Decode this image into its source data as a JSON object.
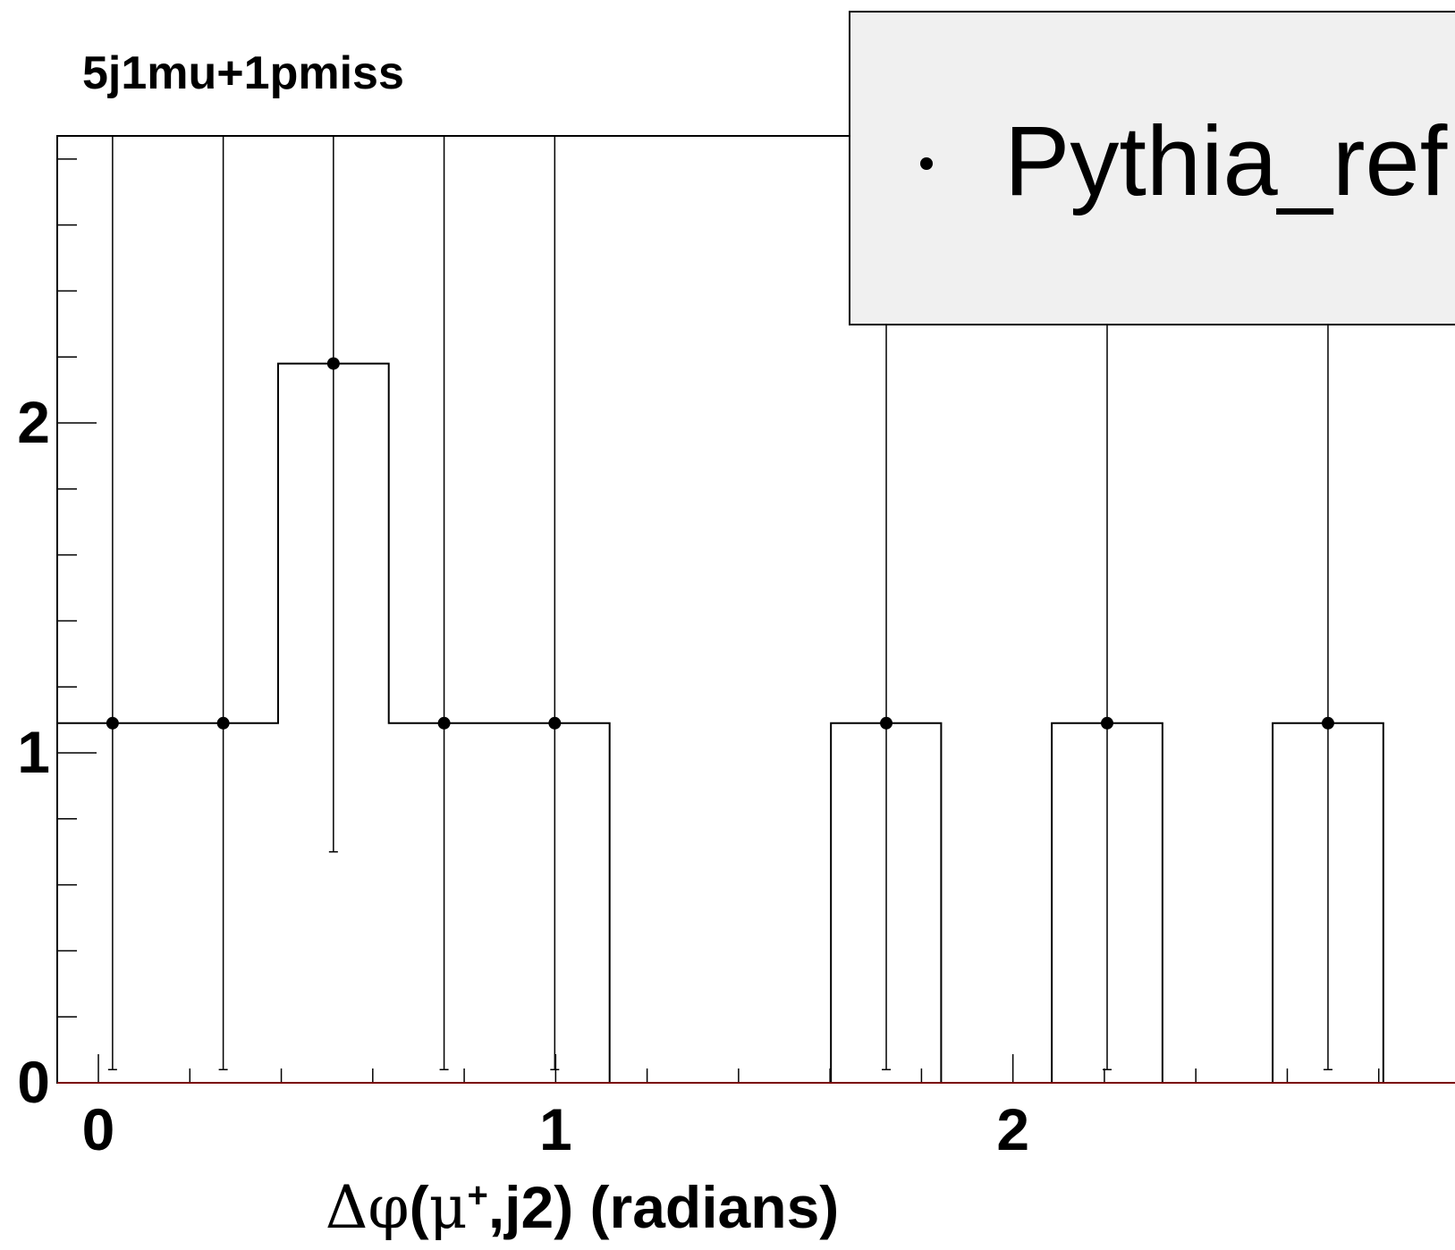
{
  "chart_data": {
    "type": "histogram",
    "title": "5j1mu+1pmiss",
    "xlabel": "Δφ(μ⁺,j2) (radians)",
    "xlabel_parts": {
      "delta_phi": "Δφ",
      "open": "(",
      "mu": "μ",
      "sup": "+",
      "rest": ",j2) (radians)"
    },
    "xlim": [
      -0.09,
      3.0
    ],
    "ylim": [
      0,
      2.87
    ],
    "x_ticks": [
      "0",
      "1",
      "2"
    ],
    "x_tick_values": [
      0,
      1,
      2
    ],
    "y_ticks": [
      "0",
      "1",
      "2"
    ],
    "y_tick_values": [
      0,
      1,
      2
    ],
    "bin_width": 0.2417,
    "grid": false,
    "legend_position": "top-right",
    "series": [
      {
        "name": "Pythia_ref",
        "bins": [
          {
            "low": -0.09,
            "high": 0.152,
            "center": 0.031,
            "value": 1.09,
            "err_low": 1.05,
            "err_high": 2.16
          },
          {
            "low": 0.152,
            "high": 0.393,
            "center": 0.273,
            "value": 1.09,
            "err_low": 1.05,
            "err_high": 2.16
          },
          {
            "low": 0.393,
            "high": 0.635,
            "center": 0.514,
            "value": 2.18,
            "err_low": 1.48,
            "err_high": 2.87
          },
          {
            "low": 0.635,
            "high": 0.877,
            "center": 0.756,
            "value": 1.09,
            "err_low": 1.05,
            "err_high": 2.16
          },
          {
            "low": 0.877,
            "high": 1.118,
            "center": 0.998,
            "value": 1.09,
            "err_low": 1.05,
            "err_high": 2.16
          },
          {
            "low": 1.118,
            "high": 1.36,
            "center": 1.239,
            "value": 0,
            "err_low": 0,
            "err_high": 0
          },
          {
            "low": 1.36,
            "high": 1.602,
            "center": 1.481,
            "value": 0,
            "err_low": 0,
            "err_high": 0
          },
          {
            "low": 1.602,
            "high": 1.843,
            "center": 1.723,
            "value": 1.09,
            "err_low": 1.05,
            "err_high": 2.16
          },
          {
            "low": 1.843,
            "high": 2.085,
            "center": 1.964,
            "value": 0,
            "err_low": 0,
            "err_high": 0
          },
          {
            "low": 2.085,
            "high": 2.327,
            "center": 2.206,
            "value": 1.09,
            "err_low": 1.05,
            "err_high": 2.16
          },
          {
            "low": 2.327,
            "high": 2.568,
            "center": 2.448,
            "value": 0,
            "err_low": 0,
            "err_high": 0
          },
          {
            "low": 2.568,
            "high": 2.81,
            "center": 2.689,
            "value": 1.09,
            "err_low": 1.05,
            "err_high": 2.16
          }
        ]
      }
    ]
  }
}
